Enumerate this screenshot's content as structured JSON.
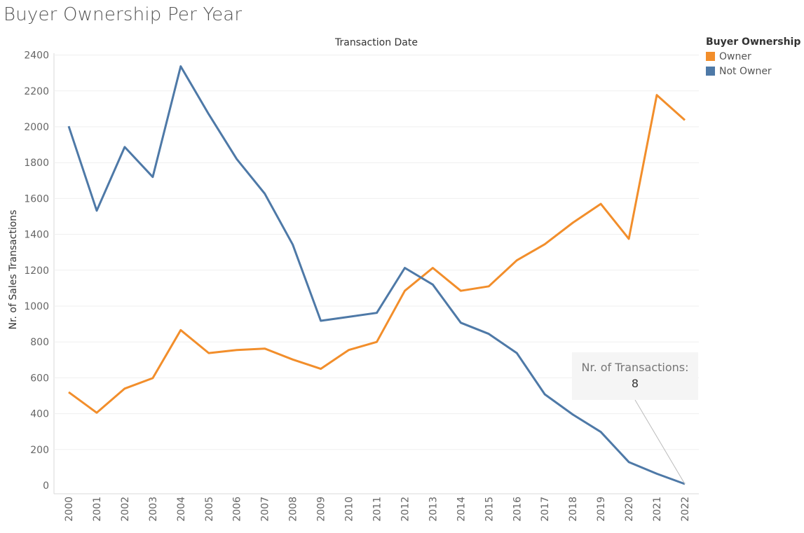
{
  "title": "Buyer Ownership Per Year",
  "chart_data": {
    "type": "line",
    "header_label": "Transaction Date",
    "ylabel": "Nr. of Sales Transactions",
    "xlabel": "",
    "x": [
      "2000",
      "2001",
      "2002",
      "2003",
      "2004",
      "2005",
      "2006",
      "2007",
      "2008",
      "2009",
      "2010",
      "2011",
      "2012",
      "2013",
      "2014",
      "2015",
      "2016",
      "2017",
      "2018",
      "2019",
      "2020",
      "2021",
      "2022"
    ],
    "ylim": [
      0,
      2400
    ],
    "yticks": [
      0,
      200,
      400,
      600,
      800,
      1000,
      1200,
      1400,
      1600,
      1800,
      2000,
      2200,
      2400
    ],
    "series": [
      {
        "name": "Owner",
        "color": "#f28e2b",
        "values": [
          520,
          405,
          540,
          598,
          866,
          738,
          755,
          763,
          702,
          650,
          755,
          800,
          1085,
          1213,
          1085,
          1110,
          1255,
          1345,
          1465,
          1570,
          1375,
          2177,
          2037
        ]
      },
      {
        "name": "Not Owner",
        "color": "#4e79a7",
        "values": [
          2003,
          1532,
          1887,
          1720,
          2337,
          2070,
          1820,
          1627,
          1343,
          918,
          940,
          962,
          1213,
          1120,
          907,
          845,
          738,
          508,
          395,
          298,
          130,
          65,
          8
        ]
      }
    ],
    "grid": true,
    "legend_title": "Buyer Ownership",
    "legend_position": "top-right",
    "tooltip": {
      "label": "Nr. of Transactions:",
      "value": "8",
      "series": "Not Owner",
      "x": "2022"
    }
  }
}
